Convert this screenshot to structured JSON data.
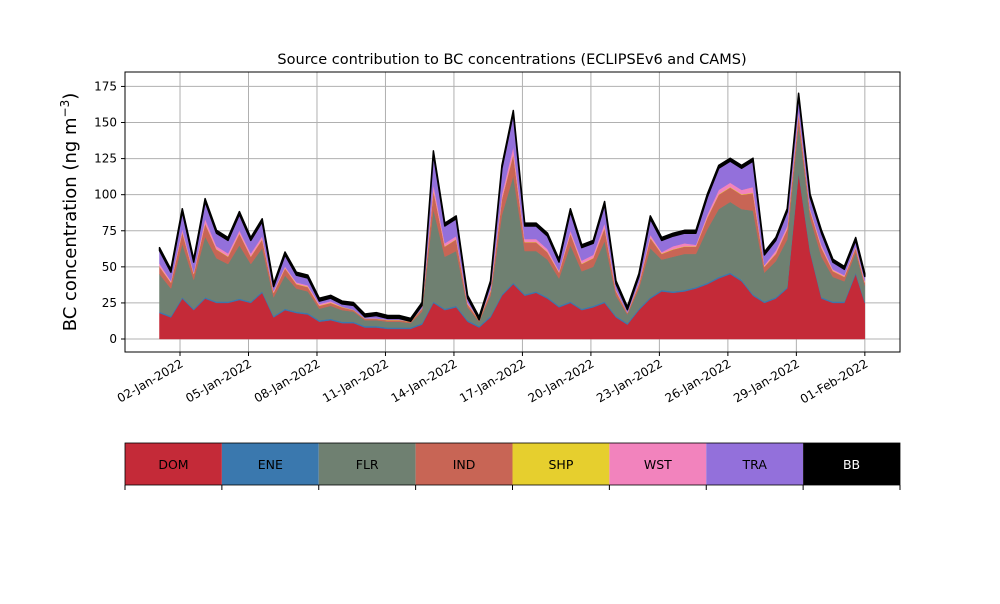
{
  "chart_data": {
    "type": "area",
    "stacked": true,
    "title": "Source contribution to BC concentrations (ECLIPSEv6 and CAMS)",
    "xlabel": "",
    "ylabel": "BC concentration (ng m$^{-3}$)",
    "ylabel_text": "BC concentration (ng m",
    "ylabel_sup": "−3",
    "ylabel_close": ")",
    "x_unit": "days since 01-Jan-2022",
    "xlim": [
      -1.41,
      32.54
    ],
    "ylim": [
      -9,
      185
    ],
    "grid": true,
    "yticks": [
      0,
      25,
      50,
      75,
      100,
      125,
      150,
      175
    ],
    "xticks": [
      {
        "value": 1,
        "label": "02-Jan-2022"
      },
      {
        "value": 4,
        "label": "05-Jan-2022"
      },
      {
        "value": 7,
        "label": "08-Jan-2022"
      },
      {
        "value": 10,
        "label": "11-Jan-2022"
      },
      {
        "value": 13,
        "label": "14-Jan-2022"
      },
      {
        "value": 16,
        "label": "17-Jan-2022"
      },
      {
        "value": 19,
        "label": "20-Jan-2022"
      },
      {
        "value": 22,
        "label": "23-Jan-2022"
      },
      {
        "value": 25,
        "label": "26-Jan-2022"
      },
      {
        "value": 28,
        "label": "29-Jan-2022"
      },
      {
        "value": 31,
        "label": "01-Feb-2022"
      }
    ],
    "x": [
      0.1,
      0.6,
      1.1,
      1.6,
      2.1,
      2.6,
      3.1,
      3.6,
      4.1,
      4.6,
      5.1,
      5.6,
      6.1,
      6.6,
      7.1,
      7.6,
      8.1,
      8.6,
      9.1,
      9.6,
      10.1,
      10.6,
      11.1,
      11.6,
      12.1,
      12.6,
      13.1,
      13.6,
      14.1,
      14.6,
      15.1,
      15.6,
      16.1,
      16.6,
      17.1,
      17.6,
      18.1,
      18.6,
      19.1,
      19.6,
      20.1,
      20.6,
      21.1,
      21.6,
      22.1,
      22.6,
      23.1,
      23.6,
      24.1,
      24.6,
      25.1,
      25.6,
      26.1,
      26.6,
      27.1,
      27.6,
      28.1,
      28.6,
      29.1,
      29.6,
      30.1,
      30.6,
      31.0
    ],
    "series": [
      {
        "name": "DOM",
        "color": "#c42a38",
        "values": [
          18,
          15,
          28,
          20,
          28,
          25,
          25,
          27,
          25,
          32,
          15,
          20,
          18,
          17,
          12,
          13,
          11,
          11,
          8,
          8,
          7,
          7,
          7,
          10,
          25,
          20,
          22,
          12,
          8,
          15,
          30,
          38,
          30,
          32,
          28,
          22,
          25,
          20,
          22,
          25,
          15,
          10,
          20,
          28,
          33,
          32,
          33,
          35,
          38,
          42,
          45,
          40,
          30,
          25,
          28,
          35,
          115,
          60,
          28,
          25,
          25,
          45,
          25
        ]
      },
      {
        "name": "ENE",
        "color": "#3a78ae",
        "values": [
          1,
          1,
          1,
          1,
          1,
          1,
          1,
          1,
          1,
          1,
          1,
          1,
          1,
          1,
          1,
          1,
          1,
          1,
          1,
          1,
          1,
          1,
          1,
          1,
          1,
          1,
          1,
          1,
          1,
          1,
          1,
          1,
          1,
          1,
          1,
          1,
          1,
          1,
          1,
          1,
          1,
          1,
          1,
          1,
          1,
          1,
          1,
          1,
          1,
          1,
          1,
          1,
          1,
          1,
          1,
          1,
          1,
          1,
          1,
          1,
          1,
          1,
          1
        ]
      },
      {
        "name": "FLR",
        "color": "#6f8071",
        "values": [
          26,
          19,
          37,
          20,
          42,
          30,
          26,
          37,
          26,
          30,
          13,
          23,
          16,
          15,
          8,
          9,
          8,
          7,
          4,
          4,
          4,
          4,
          3,
          8,
          64,
          36,
          38,
          9,
          3,
          14,
          55,
          74,
          30,
          28,
          26,
          19,
          39,
          26,
          27,
          42,
          14,
          6,
          14,
          34,
          21,
          24,
          25,
          23,
          37,
          47,
          49,
          49,
          58,
          20,
          25,
          33,
          33,
          23,
          28,
          17,
          14,
          14,
          11
        ]
      },
      {
        "name": "IND",
        "color": "#c86555",
        "values": [
          5,
          4,
          8,
          4,
          9,
          6,
          5,
          8,
          5,
          6,
          3,
          5,
          3,
          3,
          2,
          2,
          2,
          1,
          1,
          1,
          1,
          1,
          1,
          2,
          13,
          7,
          8,
          2,
          1,
          3,
          11,
          15,
          6,
          6,
          5,
          4,
          8,
          5,
          6,
          9,
          3,
          1,
          3,
          7,
          4,
          5,
          5,
          5,
          8,
          10,
          10,
          10,
          12,
          4,
          5,
          7,
          7,
          5,
          6,
          4,
          3,
          3,
          2
        ]
      },
      {
        "name": "SHP",
        "color": "#e6cf2e",
        "values": [
          0.3,
          0.3,
          0.3,
          0.3,
          0.3,
          0.3,
          0.3,
          0.3,
          0.3,
          0.3,
          0.3,
          0.3,
          0.3,
          0.3,
          0.3,
          0.3,
          0.3,
          0.3,
          0.3,
          0.3,
          0.3,
          0.3,
          0.3,
          0.3,
          0.3,
          0.3,
          0.3,
          0.3,
          0.3,
          0.3,
          0.3,
          0.3,
          0.3,
          0.3,
          0.3,
          0.3,
          0.3,
          0.3,
          0.3,
          0.3,
          0.3,
          0.3,
          0.3,
          0.3,
          0.3,
          0.3,
          0.3,
          0.3,
          0.3,
          0.3,
          0.3,
          0.3,
          0.3,
          0.3,
          0.3,
          0.3,
          0.3,
          0.3,
          0.3,
          0.3,
          0.3,
          0.3,
          0.3
        ]
      },
      {
        "name": "WST",
        "color": "#f283bd",
        "values": [
          2,
          1,
          2,
          1,
          3,
          2,
          2,
          2,
          2,
          2,
          1,
          1,
          1,
          1,
          1,
          1,
          0,
          0,
          0,
          0,
          0,
          0,
          0,
          0,
          4,
          2,
          2,
          1,
          0,
          1,
          3,
          5,
          2,
          2,
          2,
          1,
          2,
          2,
          2,
          3,
          1,
          0,
          1,
          2,
          1,
          2,
          2,
          1,
          2,
          3,
          3,
          3,
          4,
          1,
          2,
          2,
          2,
          1,
          2,
          1,
          1,
          1,
          1
        ]
      },
      {
        "name": "TRA",
        "color": "#9370db",
        "values": [
          9,
          6,
          12,
          7,
          12,
          9,
          9,
          11,
          9,
          10,
          3,
          8,
          5,
          5,
          2,
          2,
          2,
          3,
          1,
          2,
          1,
          1,
          0,
          2,
          21,
          12,
          12,
          3,
          0,
          4,
          18,
          23,
          9,
          9,
          9,
          6,
          13,
          9,
          8,
          13,
          4,
          2,
          4,
          11,
          8,
          7,
          7,
          8,
          12,
          15,
          15,
          15,
          18,
          7,
          7,
          10,
          10,
          8,
          8,
          5,
          4,
          4,
          3
        ]
      },
      {
        "name": "BB",
        "color": "#000000",
        "values": [
          2,
          2,
          2,
          2,
          2,
          2,
          2,
          2,
          2,
          2,
          2,
          2,
          2,
          2,
          2,
          2,
          2,
          2,
          2,
          2,
          2,
          2,
          2,
          2,
          2,
          2,
          2,
          2,
          2,
          2,
          2,
          2,
          2,
          2,
          2,
          2,
          2,
          2,
          2,
          2,
          2,
          2,
          2,
          2,
          2,
          2,
          2,
          2,
          2,
          2,
          2,
          2,
          2,
          2,
          2,
          2,
          2,
          2,
          2,
          2,
          2,
          2,
          2
        ]
      }
    ],
    "legend": {
      "placement": "bottom",
      "style": "colorbar",
      "text_colors": {
        "BB": "#ffffff"
      }
    }
  }
}
